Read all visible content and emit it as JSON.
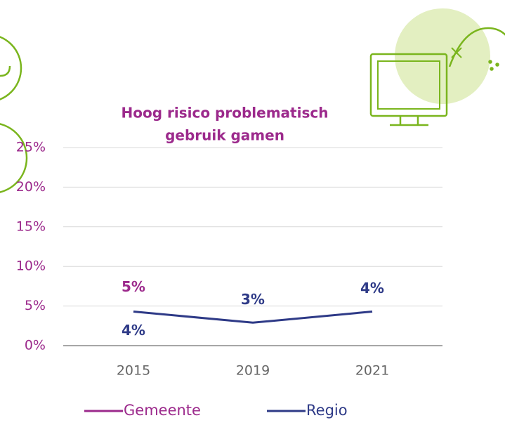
{
  "chart_data": {
    "type": "line",
    "title": [
      "Hoog risico problematisch",
      "gebruik gamen"
    ],
    "categories": [
      "2015",
      "2019",
      "2021"
    ],
    "series": [
      {
        "name": "Gemeente",
        "color": "#9c2a8c",
        "values": [
          5,
          null,
          null
        ],
        "value_labels": [
          "5%",
          null,
          null
        ]
      },
      {
        "name": "Regio",
        "color": "#2e3a87",
        "values": [
          4.3,
          2.9,
          4.3
        ],
        "value_labels": [
          "4%",
          "3%",
          "4%"
        ]
      }
    ],
    "ylim": [
      0,
      25
    ],
    "yticks": [
      {
        "value": 0,
        "label": "0%"
      },
      {
        "value": 5,
        "label": "5%"
      },
      {
        "value": 10,
        "label": "10%"
      },
      {
        "value": 15,
        "label": "15%"
      },
      {
        "value": 20,
        "label": "20%"
      },
      {
        "value": 25,
        "label": "25%"
      }
    ],
    "grid": true,
    "legend": "bottom"
  }
}
